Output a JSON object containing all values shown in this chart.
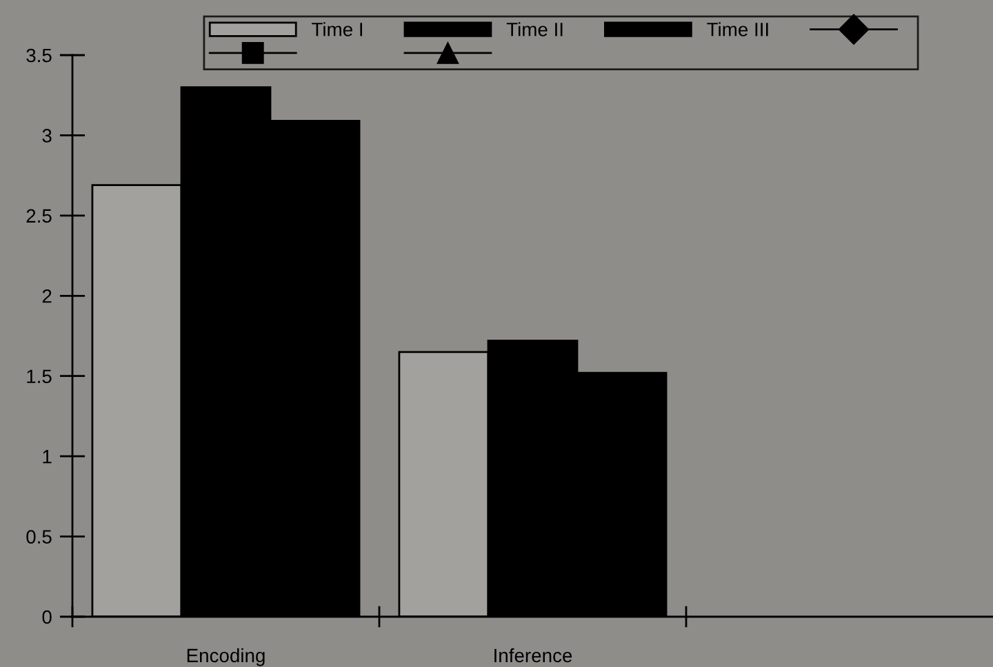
{
  "chart_data": {
    "type": "bar",
    "categories": [
      "Encoding",
      "Inference",
      null
    ],
    "series": [
      {
        "name": "Time I",
        "color": "#a3a19e",
        "values": [
          2.69,
          1.65,
          null
        ]
      },
      {
        "name": "Time II",
        "color": "#000000",
        "values": [
          3.3,
          1.72,
          null
        ]
      },
      {
        "name": "Time III",
        "color": "#000000",
        "values": [
          3.09,
          1.52,
          null
        ]
      },
      {
        "type": "line",
        "color": "#000000",
        "marker": "diamond",
        "values": [
          null,
          null,
          null
        ]
      },
      {
        "type": "line",
        "color": "#000000",
        "marker": "square",
        "values": [
          null,
          null,
          null
        ]
      },
      {
        "type": "line",
        "color": "#000000",
        "marker": "triangle",
        "values": [
          null,
          null,
          null
        ]
      }
    ],
    "ylim": [
      0,
      3.5
    ],
    "yticks": [
      0,
      0.5,
      1,
      1.5,
      2,
      2.5,
      3,
      3.5
    ],
    "grid": false,
    "legend": "top"
  }
}
